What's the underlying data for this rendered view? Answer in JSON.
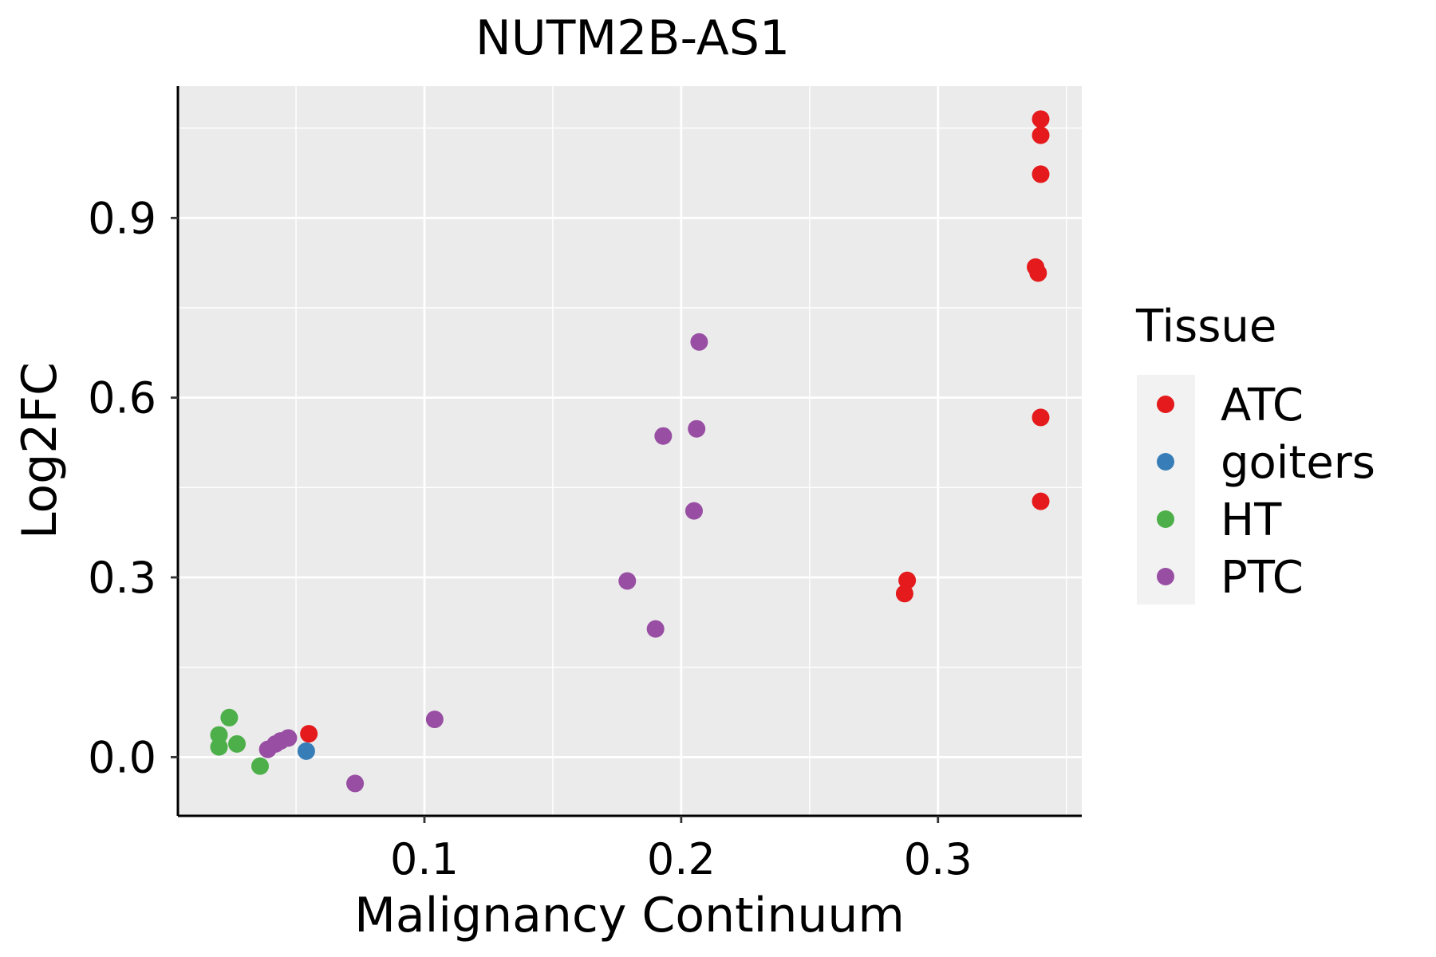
{
  "chart_data": {
    "type": "scatter",
    "title": "NUTM2B-AS1",
    "xlabel": "Malignancy Continuum",
    "ylabel": "Log2FC",
    "xlim": [
      0.004,
      0.356
    ],
    "ylim": [
      -0.098,
      1.12
    ],
    "xticks": [
      0.1,
      0.2,
      0.3
    ],
    "xtick_labels": [
      "0.1",
      "0.2",
      "0.3"
    ],
    "yticks": [
      0.0,
      0.3,
      0.6,
      0.9
    ],
    "ytick_labels": [
      "0.0",
      "0.3",
      "0.6",
      "0.9"
    ],
    "grid": true,
    "legend": {
      "title": "Tissue",
      "position": "right"
    },
    "series": [
      {
        "name": "ATC",
        "color": "#E41A1C",
        "points": [
          {
            "x": 0.34,
            "y": 1.065
          },
          {
            "x": 0.34,
            "y": 1.038
          },
          {
            "x": 0.34,
            "y": 0.973
          },
          {
            "x": 0.338,
            "y": 0.818
          },
          {
            "x": 0.339,
            "y": 0.808
          },
          {
            "x": 0.34,
            "y": 0.567
          },
          {
            "x": 0.34,
            "y": 0.427
          },
          {
            "x": 0.288,
            "y": 0.295
          },
          {
            "x": 0.287,
            "y": 0.273
          },
          {
            "x": 0.055,
            "y": 0.039
          }
        ]
      },
      {
        "name": "goiters",
        "color": "#377EB8",
        "points": [
          {
            "x": 0.054,
            "y": 0.01
          }
        ]
      },
      {
        "name": "HT",
        "color": "#4DAF4A",
        "points": [
          {
            "x": 0.024,
            "y": 0.066
          },
          {
            "x": 0.02,
            "y": 0.037
          },
          {
            "x": 0.02,
            "y": 0.017
          },
          {
            "x": 0.027,
            "y": 0.022
          },
          {
            "x": 0.036,
            "y": -0.015
          }
        ]
      },
      {
        "name": "PTC",
        "color": "#984EA3",
        "points": [
          {
            "x": 0.207,
            "y": 0.693
          },
          {
            "x": 0.206,
            "y": 0.548
          },
          {
            "x": 0.193,
            "y": 0.536
          },
          {
            "x": 0.205,
            "y": 0.411
          },
          {
            "x": 0.179,
            "y": 0.294
          },
          {
            "x": 0.19,
            "y": 0.214
          },
          {
            "x": 0.104,
            "y": 0.063
          },
          {
            "x": 0.047,
            "y": 0.032
          },
          {
            "x": 0.044,
            "y": 0.027
          },
          {
            "x": 0.042,
            "y": 0.022
          },
          {
            "x": 0.039,
            "y": 0.013
          },
          {
            "x": 0.073,
            "y": -0.044
          }
        ]
      }
    ]
  }
}
